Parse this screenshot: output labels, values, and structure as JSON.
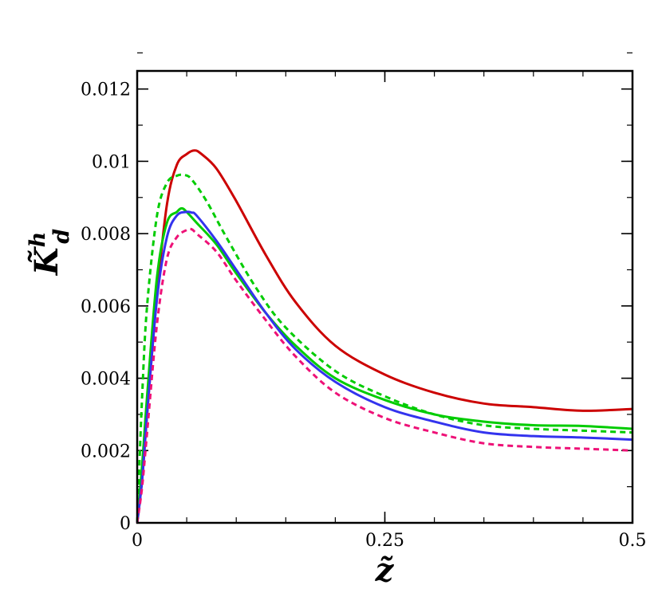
{
  "chart_data": {
    "type": "line",
    "xlabel": "z̃",
    "ylabel": "K̃",
    "ylabel_sup": "h",
    "ylabel_sub": "d",
    "xlim": [
      0,
      0.5
    ],
    "ylim": [
      0,
      0.0125
    ],
    "x_ticks": [
      0,
      0.25,
      0.5
    ],
    "x_tick_labels": [
      "0",
      "0.25",
      "0.5"
    ],
    "y_ticks": [
      0,
      0.002,
      0.004,
      0.006,
      0.008,
      0.01,
      0.012
    ],
    "y_tick_labels": [
      "0",
      "0.002",
      "0.004",
      "0.006",
      "0.008",
      "0.01",
      "0.012"
    ],
    "x_minor_step": 0.05,
    "y_minor_step": 0.001,
    "grid": false,
    "legend": "none",
    "series": [
      {
        "color": "#cc0000",
        "dash": "solid",
        "x": [
          0,
          0.005,
          0.01,
          0.02,
          0.03,
          0.04,
          0.05,
          0.058,
          0.065,
          0.08,
          0.1,
          0.13,
          0.16,
          0.2,
          0.25,
          0.3,
          0.35,
          0.4,
          0.45,
          0.5
        ],
        "y": [
          0,
          0.0012,
          0.003,
          0.0063,
          0.0088,
          0.0099,
          0.0102,
          0.0103,
          0.0102,
          0.0098,
          0.0089,
          0.0074,
          0.0061,
          0.0049,
          0.0041,
          0.0036,
          0.0033,
          0.0032,
          0.0031,
          0.00315
        ]
      },
      {
        "color": "#00cc00",
        "dash": "dashed",
        "x": [
          0,
          0.005,
          0.01,
          0.02,
          0.03,
          0.04,
          0.048,
          0.055,
          0.07,
          0.09,
          0.12,
          0.15,
          0.2,
          0.25,
          0.3,
          0.35,
          0.4,
          0.45,
          0.5
        ],
        "y": [
          0,
          0.0035,
          0.006,
          0.0085,
          0.0094,
          0.0096,
          0.00962,
          0.0095,
          0.0089,
          0.0079,
          0.0065,
          0.0054,
          0.0042,
          0.0035,
          0.003,
          0.0027,
          0.0026,
          0.00255,
          0.0025
        ]
      },
      {
        "color": "#00cc00",
        "dash": "solid",
        "x": [
          0,
          0.005,
          0.01,
          0.02,
          0.03,
          0.04,
          0.045,
          0.05,
          0.06,
          0.08,
          0.1,
          0.13,
          0.16,
          0.2,
          0.25,
          0.3,
          0.35,
          0.4,
          0.45,
          0.5
        ],
        "y": [
          0,
          0.0016,
          0.0035,
          0.0068,
          0.0083,
          0.0086,
          0.0087,
          0.0086,
          0.0083,
          0.0077,
          0.0069,
          0.0058,
          0.0049,
          0.004,
          0.0034,
          0.003,
          0.0028,
          0.0027,
          0.00268,
          0.0026
        ]
      },
      {
        "color": "#3333ee",
        "dash": "solid",
        "x": [
          0,
          0.005,
          0.01,
          0.02,
          0.03,
          0.04,
          0.05,
          0.055,
          0.06,
          0.08,
          0.1,
          0.13,
          0.16,
          0.2,
          0.25,
          0.3,
          0.35,
          0.4,
          0.45,
          0.5
        ],
        "y": [
          0,
          0.0012,
          0.003,
          0.0062,
          0.0079,
          0.0085,
          0.0086,
          0.00858,
          0.0085,
          0.0078,
          0.007,
          0.0058,
          0.0048,
          0.0039,
          0.0032,
          0.0028,
          0.0025,
          0.0024,
          0.00236,
          0.0023
        ]
      },
      {
        "color": "#ee1177",
        "dash": "dashed",
        "x": [
          0,
          0.005,
          0.01,
          0.02,
          0.03,
          0.04,
          0.05,
          0.055,
          0.06,
          0.08,
          0.1,
          0.13,
          0.16,
          0.2,
          0.25,
          0.3,
          0.35,
          0.4,
          0.45,
          0.5
        ],
        "y": [
          0,
          0.001,
          0.0025,
          0.0055,
          0.0073,
          0.0079,
          0.0081,
          0.00812,
          0.008,
          0.0075,
          0.0067,
          0.0056,
          0.0046,
          0.0036,
          0.0029,
          0.0025,
          0.0022,
          0.0021,
          0.00205,
          0.002
        ]
      }
    ]
  }
}
